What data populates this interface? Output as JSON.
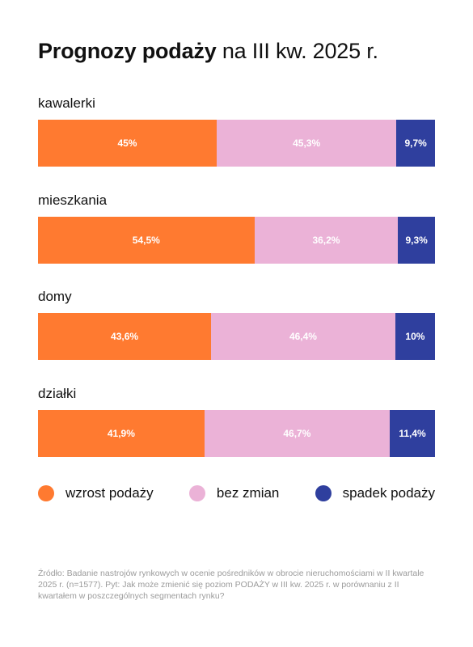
{
  "title": {
    "bold": "Prognozy podaży",
    "rest": "na III kw. 2025 r."
  },
  "colors": {
    "wzrost": "#ff7a30",
    "bez_zmian": "#ebb2d7",
    "spadek": "#2f3f9e"
  },
  "legend": [
    {
      "label": "wzrost podaży",
      "color": "#ff7a30"
    },
    {
      "label": "bez zmian",
      "color": "#ebb2d7"
    },
    {
      "label": "spadek podaży",
      "color": "#2f3f9e"
    }
  ],
  "source": "Źródło: Badanie nastrojów rynkowych w ocenie pośredników w obrocie nieruchomościami w II kwartale 2025 r. (n=1577). Pyt: Jak może zmienić się poziom PODAŻY w III kw. 2025 r. w porównaniu z II kwartałem w poszczególnych segmentach rynku?",
  "chart_data": {
    "type": "bar",
    "orientation": "horizontal",
    "stacked": true,
    "percent": true,
    "title": "Prognozy podaży na III kw. 2025 r.",
    "categories": [
      "kawalerki",
      "mieszkania",
      "domy",
      "działki"
    ],
    "series": [
      {
        "name": "wzrost podaży",
        "values": [
          45,
          54.5,
          43.6,
          41.9
        ],
        "labels": [
          "45%",
          "54,5%",
          "43,6%",
          "41,9%"
        ]
      },
      {
        "name": "bez zmian",
        "values": [
          45.3,
          36.2,
          46.4,
          46.7
        ],
        "labels": [
          "45,3%",
          "36,2%",
          "46,4%",
          "46,7%"
        ]
      },
      {
        "name": "spadek podaży",
        "values": [
          9.7,
          9.3,
          10,
          11.4
        ],
        "labels": [
          "9,7%",
          "9,3%",
          "10%",
          "11,4%"
        ]
      }
    ],
    "legend": "bottom"
  }
}
